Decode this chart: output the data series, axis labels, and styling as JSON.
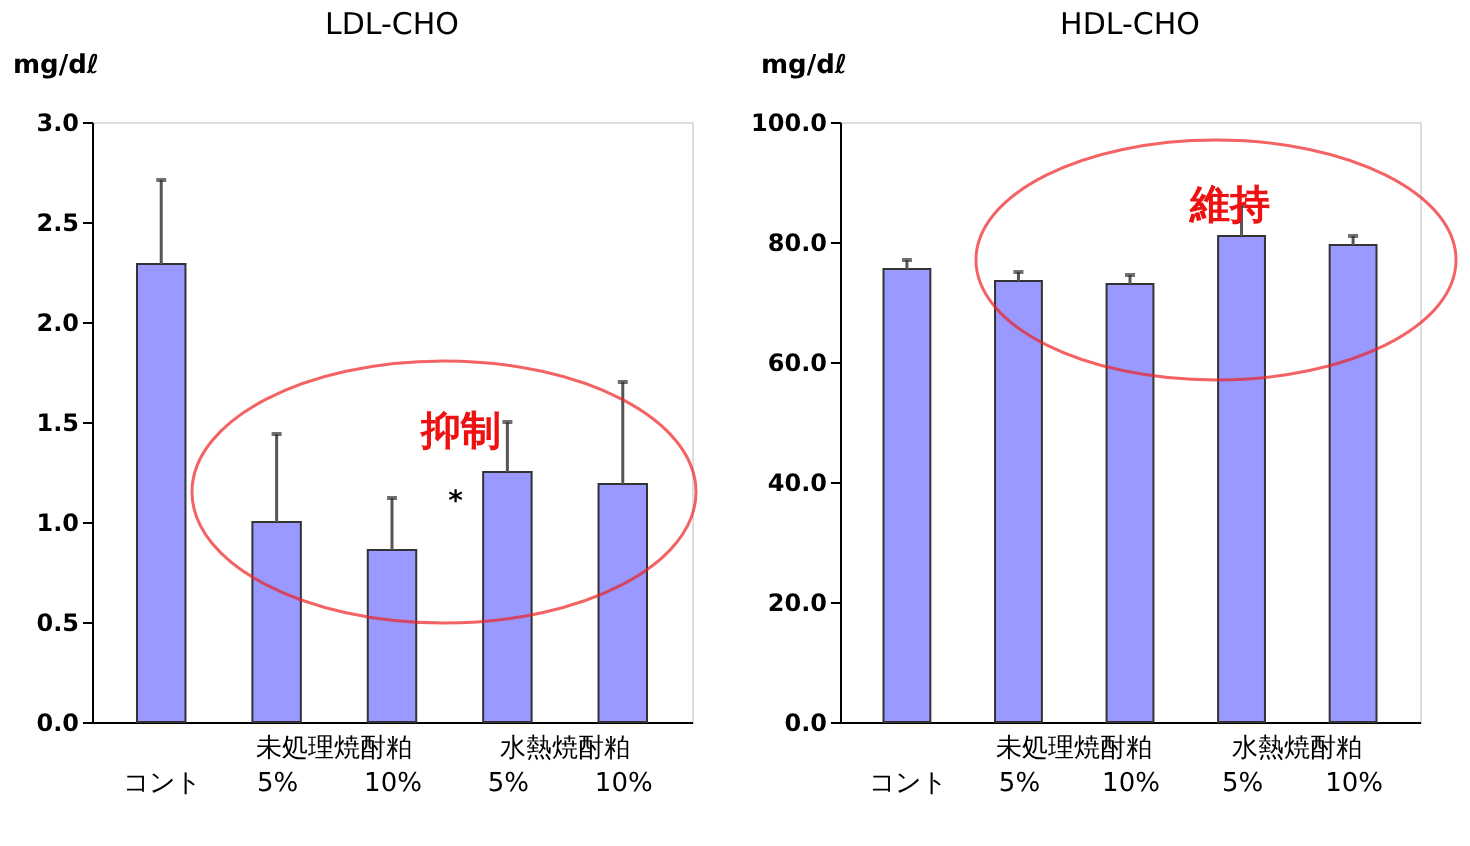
{
  "chart_data": [
    {
      "type": "bar",
      "title": "LDL-CHO",
      "ylabel": "mg/dℓ",
      "categories": [
        "コント",
        "5%",
        "10%",
        "5%",
        "10%"
      ],
      "values": [
        2.29,
        1.0,
        0.86,
        1.25,
        1.19
      ],
      "color": "#9999ff",
      "errors": [
        [
          2.29,
          2.71
        ],
        [
          1.0,
          1.44
        ],
        [
          0.86,
          1.12
        ],
        [
          1.25,
          1.5
        ],
        [
          1.19,
          1.7
        ]
      ],
      "ylim": [
        0,
        3.0
      ],
      "yticks": [
        {
          "value": 0,
          "label": "0.0"
        },
        0.5,
        {
          "value": 1,
          "label": "1.0"
        },
        1.5,
        {
          "value": 2,
          "label": "2.0"
        },
        2.5,
        {
          "value": 3,
          "label": "3.0"
        }
      ],
      "grid": false,
      "annotations": [
        "未処理焼酎粕",
        "水熱焼酎粕",
        "抑制",
        "*"
      ]
    },
    {
      "type": "bar",
      "title": "HDL-CHO",
      "ylabel": "mg/dℓ",
      "categories": [
        "コント",
        "5%",
        "10%",
        "5%",
        "10%"
      ],
      "values": [
        75.5,
        73.5,
        73.0,
        81.0,
        79.5
      ],
      "color": "#9999ff",
      "errors": [
        [
          75.5,
          77.0
        ],
        [
          73.5,
          75.0
        ],
        [
          73.0,
          74.5
        ],
        [
          81.0,
          86.0
        ],
        [
          79.5,
          81.0
        ]
      ],
      "ylim": [
        0,
        100.0
      ],
      "yticks": [
        {
          "value": 0,
          "label": "0.0"
        },
        {
          "value": 20,
          "label": "20.0"
        },
        {
          "value": 40,
          "label": "40.0"
        },
        {
          "value": 60,
          "label": "60.0"
        },
        {
          "value": 80,
          "label": "80.0"
        },
        {
          "value": 100,
          "label": "100.0"
        }
      ],
      "grid": false,
      "annotations": [
        "未処理焼酎粕",
        "水熱焼酎粕",
        "維持"
      ]
    }
  ]
}
